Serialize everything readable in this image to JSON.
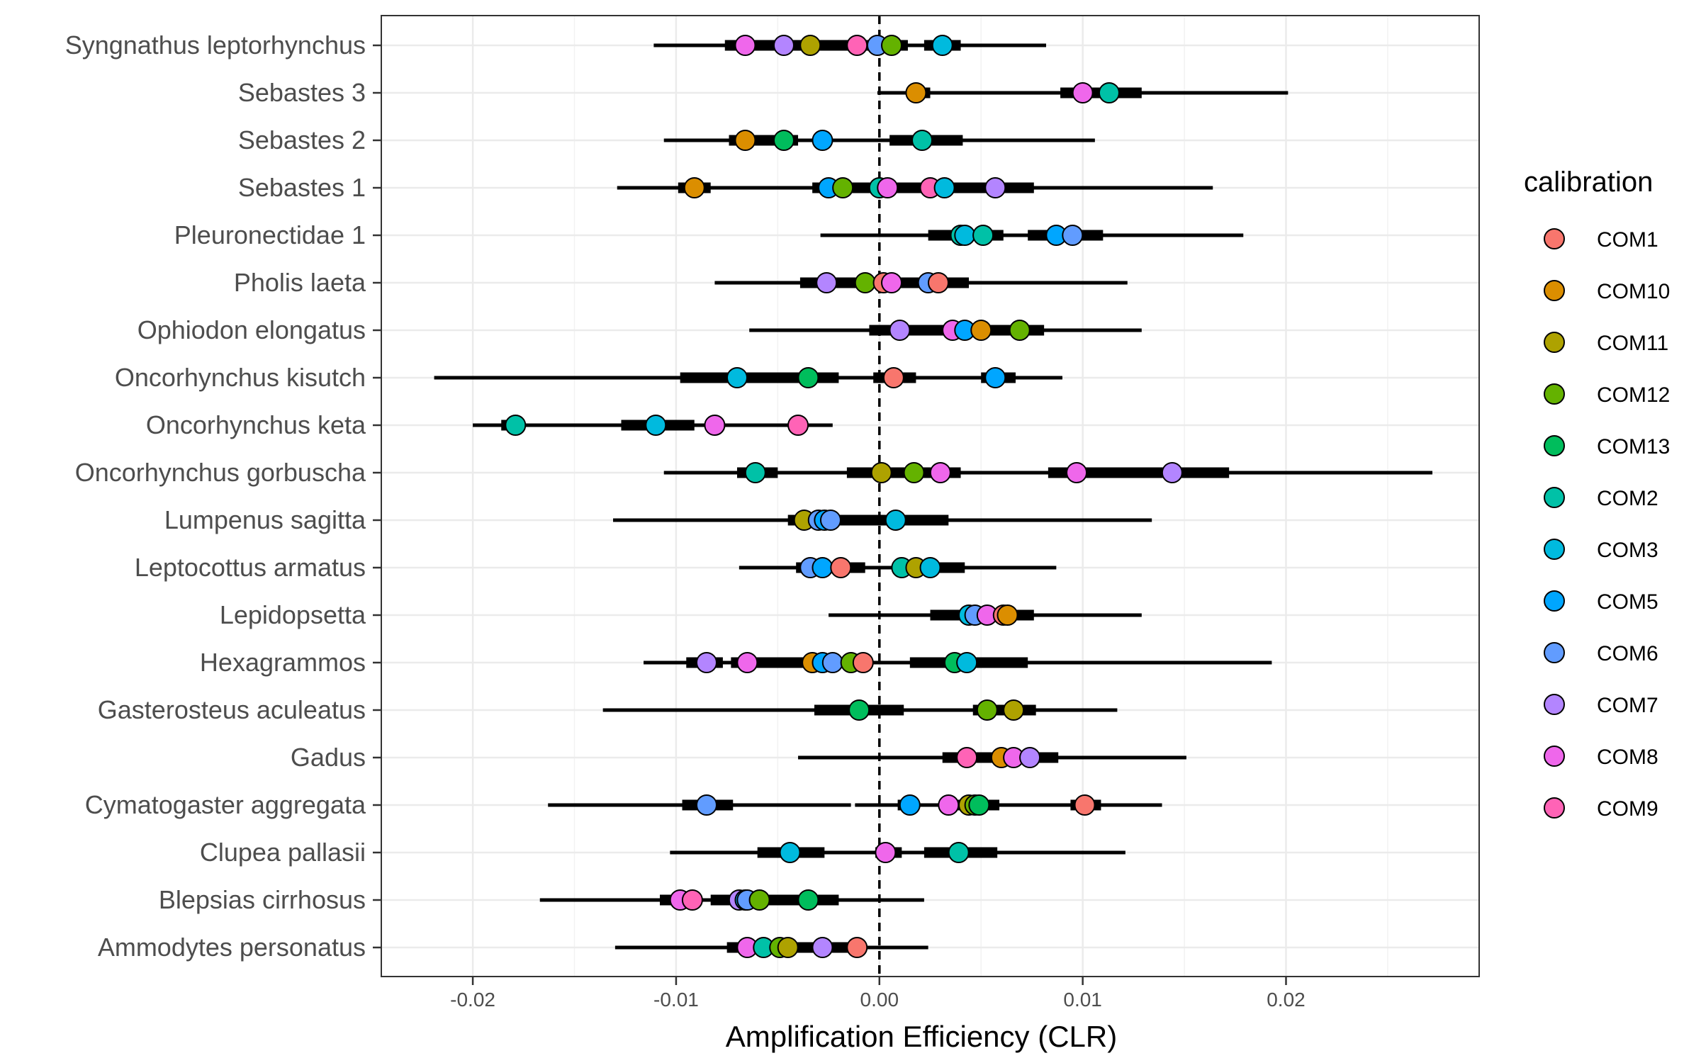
{
  "chart_data": {
    "type": "scatter",
    "xlabel": "Amplification Efficiency (CLR)",
    "ylabel": "",
    "xlim": [
      -0.0245,
      0.0295
    ],
    "xticks": [
      -0.02,
      -0.01,
      0.0,
      0.01,
      0.02
    ],
    "xtick_labels": [
      "-0.02",
      "-0.01",
      "0.00",
      "0.01",
      "0.02"
    ],
    "reference_line_x": 0.0,
    "grid": true,
    "legend": {
      "title": "calibration",
      "placement": "right",
      "entries": [
        {
          "name": "COM1",
          "color": "#F8766D"
        },
        {
          "name": "COM10",
          "color": "#DB8E00"
        },
        {
          "name": "COM11",
          "color": "#AEA200"
        },
        {
          "name": "COM12",
          "color": "#64B200"
        },
        {
          "name": "COM13",
          "color": "#00BD5C"
        },
        {
          "name": "COM2",
          "color": "#00C1A7"
        },
        {
          "name": "COM3",
          "color": "#00BADE"
        },
        {
          "name": "COM5",
          "color": "#00A6FF"
        },
        {
          "name": "COM6",
          "color": "#619CFF"
        },
        {
          "name": "COM7",
          "color": "#B385FF"
        },
        {
          "name": "COM8",
          "color": "#EF67EB"
        },
        {
          "name": "COM9",
          "color": "#FF63B6"
        }
      ]
    },
    "species": [
      {
        "name": "Syngnathus leptorhynchus",
        "intervals": [
          [
            -0.0111,
            0.0065
          ],
          [
            0.0008,
            0.0082
          ]
        ],
        "thick": [
          [
            -0.0076,
            0.0014
          ],
          [
            0.0022,
            0.004
          ]
        ],
        "points": [
          [
            "COM8",
            -0.0066
          ],
          [
            "COM7",
            -0.0047
          ],
          [
            "COM11",
            -0.0034
          ],
          [
            "COM9",
            -0.0011
          ],
          [
            "COM6",
            -0.0001
          ],
          [
            "COM12",
            0.0006
          ],
          [
            "COM3",
            0.0031
          ]
        ]
      },
      {
        "name": "Sebastes 3",
        "intervals": [
          [
            -0.0001,
            0.0201
          ]
        ],
        "thick": [
          [
            0.0017,
            0.0025
          ],
          [
            0.0089,
            0.0129
          ]
        ],
        "points": [
          [
            "COM10",
            0.0018
          ],
          [
            "COM8",
            0.01
          ],
          [
            "COM2",
            0.0113
          ]
        ]
      },
      {
        "name": "Sebastes 2",
        "intervals": [
          [
            -0.0106,
            0.0106
          ]
        ],
        "thick": [
          [
            -0.0074,
            -0.004
          ],
          [
            0.0005,
            0.0041
          ]
        ],
        "points": [
          [
            "COM10",
            -0.0066
          ],
          [
            "COM13",
            -0.0047
          ],
          [
            "COM5",
            -0.0028
          ],
          [
            "COM2",
            0.0021
          ]
        ]
      },
      {
        "name": "Sebastes 1",
        "intervals": [
          [
            -0.0129,
            0.0164
          ]
        ],
        "thick": [
          [
            -0.0099,
            -0.0083
          ],
          [
            -0.0033,
            0.0076
          ]
        ],
        "points": [
          [
            "COM10",
            -0.0091
          ],
          [
            "COM5",
            -0.0025
          ],
          [
            "COM12",
            -0.0018
          ],
          [
            "COM2",
            0.0
          ],
          [
            "COM8",
            0.0004
          ],
          [
            "COM9",
            0.0025
          ],
          [
            "COM3",
            0.0032
          ],
          [
            "COM7",
            0.0057
          ]
        ]
      },
      {
        "name": "Pleuronectidae 1",
        "intervals": [
          [
            -0.0029,
            0.0179
          ]
        ],
        "thick": [
          [
            0.0024,
            0.0061
          ],
          [
            0.0073,
            0.011
          ]
        ],
        "points": [
          [
            "COM2",
            0.004
          ],
          [
            "COM3",
            0.0042
          ],
          [
            "COM2",
            0.0051
          ],
          [
            "COM5",
            0.0087
          ],
          [
            "COM6",
            0.0095
          ]
        ]
      },
      {
        "name": "Pholis laeta",
        "intervals": [
          [
            -0.0081,
            0.0122
          ]
        ],
        "thick": [
          [
            -0.0039,
            0.0044
          ]
        ],
        "points": [
          [
            "COM7",
            -0.0026
          ],
          [
            "COM12",
            -0.0007
          ],
          [
            "COM1",
            0.0002
          ],
          [
            "COM8",
            0.0006
          ],
          [
            "COM6",
            0.0024
          ],
          [
            "COM1",
            0.0029
          ]
        ]
      },
      {
        "name": "Ophiodon elongatus",
        "intervals": [
          [
            -0.0064,
            0.0129
          ]
        ],
        "thick": [
          [
            -0.0005,
            0.0081
          ]
        ],
        "points": [
          [
            "COM7",
            0.001
          ],
          [
            "COM8",
            0.0036
          ],
          [
            "COM5",
            0.0042
          ],
          [
            "COM10",
            0.005
          ],
          [
            "COM12",
            0.0069
          ]
        ]
      },
      {
        "name": "Oncorhynchus kisutch",
        "intervals": [
          [
            -0.0219,
            0.009
          ]
        ],
        "thick": [
          [
            -0.0098,
            -0.002
          ],
          [
            -0.0003,
            0.0018
          ],
          [
            0.005,
            0.0067
          ]
        ],
        "points": [
          [
            "COM3",
            -0.007
          ],
          [
            "COM13",
            -0.0035
          ],
          [
            "COM1",
            0.0007
          ],
          [
            "COM5",
            0.0057
          ]
        ]
      },
      {
        "name": "Oncorhynchus keta",
        "intervals": [
          [
            -0.02,
            -0.0023
          ]
        ],
        "thick": [
          [
            -0.0186,
            -0.0176
          ],
          [
            -0.0127,
            -0.0091
          ]
        ],
        "points": [
          [
            "COM2",
            -0.0179
          ],
          [
            "COM3",
            -0.011
          ],
          [
            "COM8",
            -0.0081
          ],
          [
            "COM9",
            -0.004
          ]
        ]
      },
      {
        "name": "Oncorhynchus gorbuscha",
        "intervals": [
          [
            -0.0106,
            0.0272
          ]
        ],
        "thick": [
          [
            -0.007,
            -0.005
          ],
          [
            -0.0016,
            0.004
          ],
          [
            0.0083,
            0.0172
          ]
        ],
        "points": [
          [
            "COM2",
            -0.0061
          ],
          [
            "COM11",
            0.0001
          ],
          [
            "COM12",
            0.0017
          ],
          [
            "COM8",
            0.003
          ],
          [
            "COM8",
            0.0097
          ],
          [
            "COM7",
            0.0144
          ]
        ]
      },
      {
        "name": "Lumpenus sagitta",
        "intervals": [
          [
            -0.0131,
            0.0134
          ]
        ],
        "thick": [
          [
            -0.0045,
            0.0034
          ]
        ],
        "points": [
          [
            "COM11",
            -0.0037
          ],
          [
            "COM6",
            -0.003
          ],
          [
            "COM5",
            -0.0027
          ],
          [
            "COM6",
            -0.0024
          ],
          [
            "COM3",
            0.0008
          ]
        ]
      },
      {
        "name": "Leptocottus armatus",
        "intervals": [
          [
            -0.0069,
            0.0087
          ]
        ],
        "thick": [
          [
            -0.0041,
            -0.0007
          ],
          [
            0.0007,
            0.0042
          ]
        ],
        "points": [
          [
            "COM6",
            -0.0034
          ],
          [
            "COM5",
            -0.0028
          ],
          [
            "COM1",
            -0.0019
          ],
          [
            "COM2",
            0.0011
          ],
          [
            "COM11",
            0.0018
          ],
          [
            "COM3",
            0.0025
          ]
        ]
      },
      {
        "name": "Lepidopsetta",
        "intervals": [
          [
            -0.0025,
            0.0129
          ]
        ],
        "thick": [
          [
            0.0025,
            0.0076
          ]
        ],
        "points": [
          [
            "COM3",
            0.0044
          ],
          [
            "COM6",
            0.0047
          ],
          [
            "COM8",
            0.0053
          ],
          [
            "COM1",
            0.0061
          ],
          [
            "COM10",
            0.0063
          ]
        ]
      },
      {
        "name": "Hexagrammos",
        "intervals": [
          [
            -0.0116,
            0.0193
          ]
        ],
        "thick": [
          [
            -0.0095,
            -0.0077
          ],
          [
            -0.0073,
            -0.0005
          ],
          [
            0.0015,
            0.0073
          ]
        ],
        "points": [
          [
            "COM7",
            -0.0085
          ],
          [
            "COM8",
            -0.0065
          ],
          [
            "COM10",
            -0.0033
          ],
          [
            "COM5",
            -0.0028
          ],
          [
            "COM6",
            -0.0023
          ],
          [
            "COM12",
            -0.0014
          ],
          [
            "COM1",
            -0.0008
          ],
          [
            "COM13",
            0.0037
          ],
          [
            "COM3",
            0.0043
          ]
        ]
      },
      {
        "name": "Gasterosteus aculeatus",
        "intervals": [
          [
            -0.0136,
            0.0117
          ]
        ],
        "thick": [
          [
            -0.0032,
            0.0012
          ],
          [
            0.0046,
            0.0077
          ]
        ],
        "points": [
          [
            "COM13",
            -0.001
          ],
          [
            "COM12",
            0.0053
          ],
          [
            "COM11",
            0.0066
          ]
        ]
      },
      {
        "name": "Gadus",
        "intervals": [
          [
            -0.004,
            0.0151
          ]
        ],
        "thick": [
          [
            0.0031,
            0.0088
          ]
        ],
        "points": [
          [
            "COM9",
            0.0043
          ],
          [
            "COM10",
            0.006
          ],
          [
            "COM8",
            0.0066
          ],
          [
            "COM7",
            0.0074
          ]
        ]
      },
      {
        "name": "Cymatogaster aggregata",
        "intervals": [
          [
            -0.0163,
            -0.0014
          ],
          [
            -0.0012,
            0.0139
          ]
        ],
        "thick": [
          [
            -0.0097,
            -0.0072
          ],
          [
            0.0009,
            0.0019
          ],
          [
            0.0037,
            0.0059
          ],
          [
            0.0094,
            0.0109
          ]
        ],
        "points": [
          [
            "COM6",
            -0.0085
          ],
          [
            "COM5",
            0.0015
          ],
          [
            "COM8",
            0.0034
          ],
          [
            "COM11",
            0.0044
          ],
          [
            "COM12",
            0.0047
          ],
          [
            "COM13",
            0.0049
          ],
          [
            "COM1",
            0.0101
          ]
        ]
      },
      {
        "name": "Clupea pallasii",
        "intervals": [
          [
            -0.0103,
            0.0121
          ]
        ],
        "thick": [
          [
            -0.006,
            -0.0027
          ],
          [
            -0.0002,
            0.0011
          ],
          [
            0.0022,
            0.0058
          ]
        ],
        "points": [
          [
            "COM3",
            -0.0044
          ],
          [
            "COM8",
            0.0003
          ],
          [
            "COM2",
            0.0039
          ]
        ]
      },
      {
        "name": "Blepsias cirrhosus",
        "intervals": [
          [
            -0.0167,
            0.0022
          ]
        ],
        "thick": [
          [
            -0.0108,
            -0.0095
          ],
          [
            -0.0083,
            -0.002
          ]
        ],
        "points": [
          [
            "COM8",
            -0.0098
          ],
          [
            "COM9",
            -0.0092
          ],
          [
            "COM7",
            -0.0069
          ],
          [
            "COM5",
            -0.0066
          ],
          [
            "COM6",
            -0.0065
          ],
          [
            "COM12",
            -0.0059
          ],
          [
            "COM13",
            -0.0035
          ]
        ]
      },
      {
        "name": "Ammodytes personatus",
        "intervals": [
          [
            -0.013,
            0.0024
          ]
        ],
        "thick": [
          [
            -0.0075,
            -0.0014
          ]
        ],
        "points": [
          [
            "COM8",
            -0.0065
          ],
          [
            "COM2",
            -0.0057
          ],
          [
            "COM12",
            -0.0049
          ],
          [
            "COM11",
            -0.0045
          ],
          [
            "COM7",
            -0.0028
          ],
          [
            "COM1",
            -0.0011
          ]
        ]
      }
    ]
  }
}
